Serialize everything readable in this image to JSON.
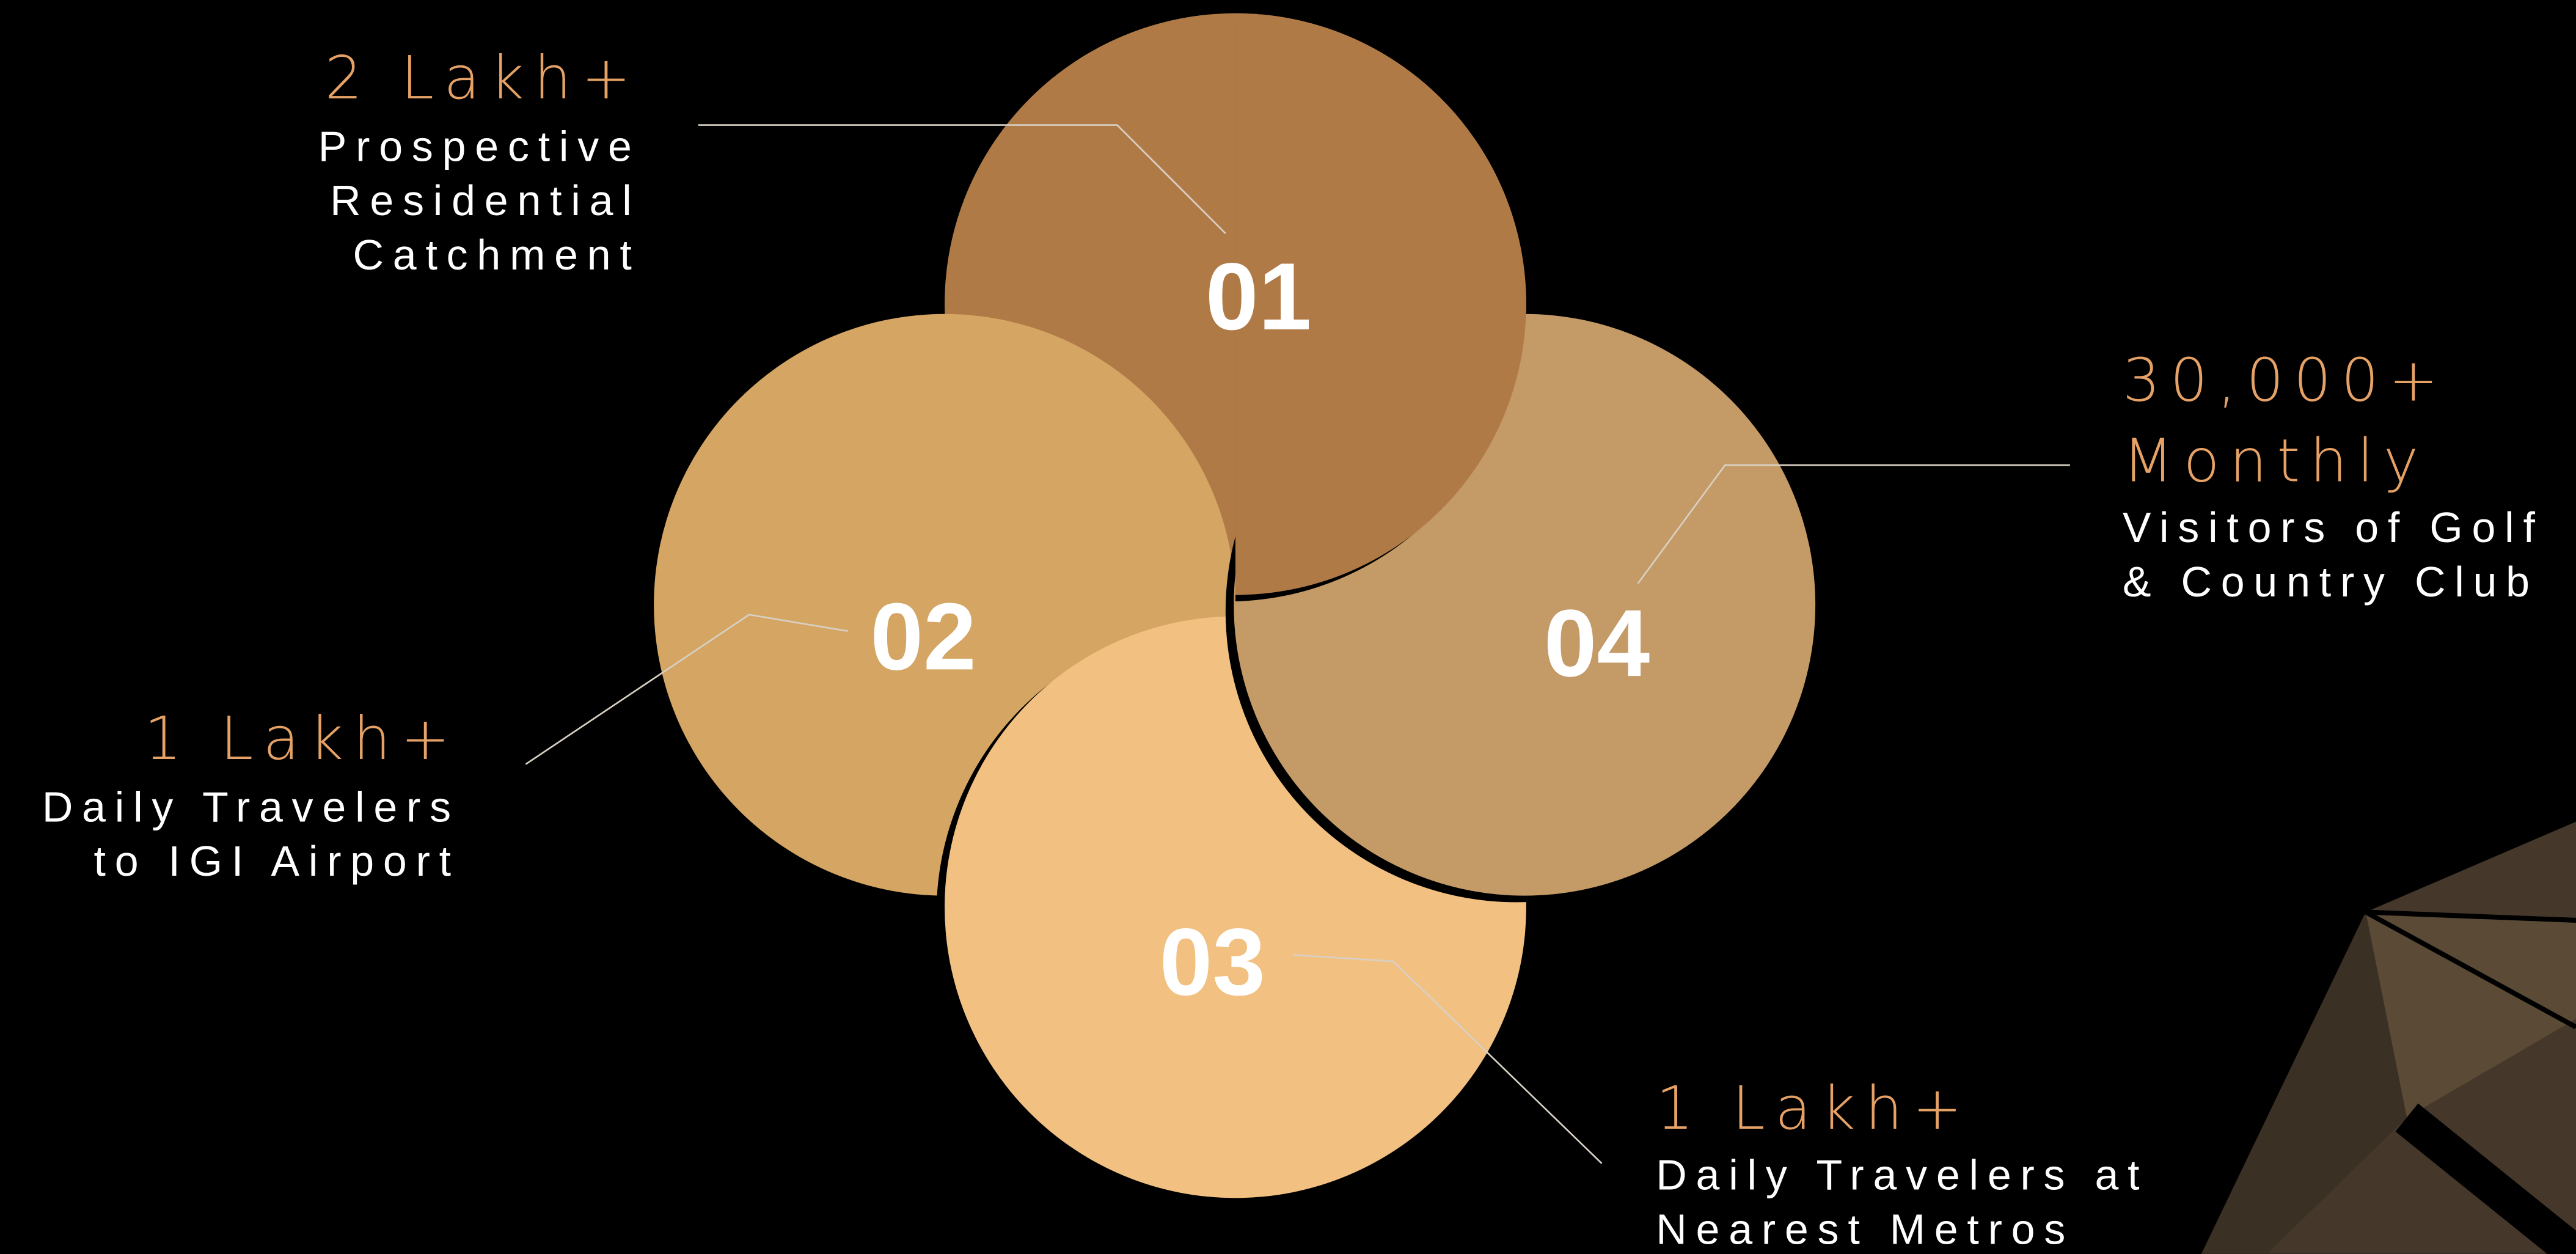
{
  "items": [
    {
      "number": "01",
      "stat": [
        "2 Lakh+"
      ],
      "description": [
        "Prospective",
        "Residential",
        "Catchment"
      ]
    },
    {
      "number": "02",
      "stat": [
        "1 Lakh+"
      ],
      "description": [
        "Daily Travelers",
        "to IGI Airport"
      ]
    },
    {
      "number": "03",
      "stat": [
        "1 Lakh+"
      ],
      "description": [
        "Daily Travelers at",
        "Nearest Metros"
      ]
    },
    {
      "number": "04",
      "stat": [
        "30,000+",
        "Monthly"
      ],
      "description": [
        "Visitors of Golf",
        "& Country Club"
      ]
    }
  ]
}
